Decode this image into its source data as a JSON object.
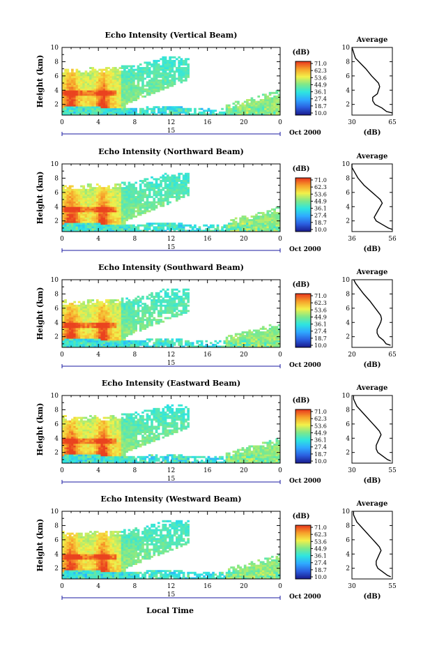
{
  "figure": {
    "xlabel": "Local Time",
    "cbar_unit": "(dB)",
    "cbar_ticks": [
      "71.0",
      "62.3",
      "53.6",
      "44.9",
      "36.1",
      "27.4",
      "18.7",
      "10.0"
    ],
    "avg_title": "Average",
    "avg_xlabel": "(dB)",
    "colors": {
      "scale": [
        "#1a1a8c",
        "#2b5fe0",
        "#2fa9ff",
        "#2ee6e0",
        "#7fe88a",
        "#f2f04a",
        "#f7a12a",
        "#e8341d"
      ],
      "line": "#000000"
    }
  },
  "chart_data": [
    {
      "type": "heatmap",
      "title": "Echo Intensity (Vertical Beam)",
      "ylabel": "Height (km)",
      "xlim": [
        0,
        24
      ],
      "ylim": [
        0.5,
        10
      ],
      "xticks": [
        "0",
        "4",
        "8",
        "12",
        "16",
        "20",
        "0"
      ],
      "yticks": [
        "2",
        "4",
        "6",
        "8",
        "10"
      ],
      "date_tick": "15",
      "date_label": "Oct 2000",
      "color_range_db": [
        10.0,
        71.0
      ],
      "average_profile": {
        "xlim": [
          30,
          65
        ],
        "xticks": [
          "30",
          "65"
        ],
        "yticks": [
          "2",
          "4",
          "6",
          "8",
          "10"
        ],
        "height_km": [
          0.8,
          1.0,
          1.5,
          2.0,
          2.5,
          3.0,
          3.5,
          4.0,
          4.5,
          5.0,
          5.5,
          6.0,
          7.0,
          8.0,
          8.5,
          9.0,
          9.5,
          10.0
        ],
        "db": [
          65,
          60,
          56,
          50,
          48,
          48,
          52,
          53,
          54,
          53,
          50,
          47,
          42,
          36,
          33,
          32,
          31,
          30
        ]
      }
    },
    {
      "type": "heatmap",
      "title": "Echo Intensity (Northward Beam)",
      "ylabel": "Height (km)",
      "xlim": [
        0,
        24
      ],
      "ylim": [
        0.5,
        10
      ],
      "xticks": [
        "0",
        "4",
        "8",
        "12",
        "16",
        "20",
        "0"
      ],
      "yticks": [
        "2",
        "4",
        "6",
        "8",
        "10"
      ],
      "date_tick": "15",
      "date_label": "Oct 2000",
      "color_range_db": [
        10.0,
        71.0
      ],
      "average_profile": {
        "xlim": [
          36,
          56
        ],
        "xticks": [
          "36",
          "56"
        ],
        "yticks": [
          "2",
          "4",
          "6",
          "8",
          "10"
        ],
        "height_km": [
          0.8,
          1.0,
          1.5,
          2.0,
          2.5,
          3.0,
          3.5,
          4.0,
          4.5,
          5.0,
          5.5,
          6.0,
          7.0,
          8.0,
          8.5,
          9.0,
          9.5,
          10.0
        ],
        "db": [
          56,
          54,
          51,
          48,
          47,
          48,
          49,
          50,
          51,
          50,
          48,
          46,
          42,
          39,
          38,
          37,
          36,
          36
        ]
      }
    },
    {
      "type": "heatmap",
      "title": "Echo Intensity (Southward Beam)",
      "ylabel": "Height (km)",
      "xlim": [
        0,
        24
      ],
      "ylim": [
        0.5,
        10
      ],
      "xticks": [
        "0",
        "4",
        "8",
        "12",
        "16",
        "20",
        "0"
      ],
      "yticks": [
        "2",
        "4",
        "6",
        "8",
        "10"
      ],
      "date_tick": "15",
      "date_label": "Oct 2000",
      "color_range_db": [
        10.0,
        71.0
      ],
      "average_profile": {
        "xlim": [
          20,
          65
        ],
        "xticks": [
          "20",
          "65"
        ],
        "yticks": [
          "2",
          "4",
          "6",
          "8",
          "10"
        ],
        "height_km": [
          0.8,
          1.0,
          1.5,
          2.0,
          2.5,
          3.0,
          3.5,
          4.0,
          4.5,
          5.0,
          5.5,
          6.0,
          7.0,
          8.0,
          8.5,
          9.0,
          9.5,
          10.0
        ],
        "db": [
          63,
          58,
          55,
          50,
          48,
          48,
          50,
          52,
          53,
          52,
          49,
          46,
          40,
          33,
          30,
          27,
          24,
          22
        ]
      }
    },
    {
      "type": "heatmap",
      "title": "Echo Intensity (Eastward Beam)",
      "ylabel": "Height (km)",
      "xlim": [
        0,
        24
      ],
      "ylim": [
        0.5,
        10
      ],
      "xticks": [
        "0",
        "4",
        "8",
        "12",
        "16",
        "20",
        "0"
      ],
      "yticks": [
        "2",
        "4",
        "6",
        "8",
        "10"
      ],
      "date_tick": "15",
      "date_label": "Oct 2000",
      "color_range_db": [
        10.0,
        71.0
      ],
      "average_profile": {
        "xlim": [
          30,
          55
        ],
        "xticks": [
          "30",
          "55"
        ],
        "yticks": [
          "2",
          "4",
          "6",
          "8",
          "10"
        ],
        "height_km": [
          0.8,
          1.0,
          1.5,
          2.0,
          2.5,
          3.0,
          3.5,
          4.0,
          4.5,
          5.0,
          5.5,
          6.0,
          7.0,
          8.0,
          8.5,
          9.0,
          9.5,
          10.0
        ],
        "db": [
          54,
          52,
          49,
          46,
          45,
          45,
          46,
          47,
          48,
          47,
          45,
          43,
          39,
          35,
          33,
          32,
          31,
          31
        ]
      }
    },
    {
      "type": "heatmap",
      "title": "Echo Intensity (Westward Beam)",
      "ylabel": "Height (km)",
      "xlim": [
        0,
        24
      ],
      "ylim": [
        0.5,
        10
      ],
      "xticks": [
        "0",
        "4",
        "8",
        "12",
        "16",
        "20",
        "0"
      ],
      "yticks": [
        "2",
        "4",
        "6",
        "8",
        "10"
      ],
      "date_tick": "15",
      "date_label": "Oct 2000",
      "color_range_db": [
        10.0,
        71.0
      ],
      "average_profile": {
        "xlim": [
          30,
          55
        ],
        "xticks": [
          "30",
          "55"
        ],
        "yticks": [
          "2",
          "4",
          "6",
          "8",
          "10"
        ],
        "height_km": [
          0.8,
          1.0,
          1.5,
          2.0,
          2.5,
          3.0,
          3.5,
          4.0,
          4.5,
          5.0,
          5.5,
          6.0,
          7.0,
          8.0,
          8.5,
          9.0,
          9.5,
          10.0
        ],
        "db": [
          54,
          52,
          49,
          46,
          45,
          45,
          46,
          47,
          48,
          47,
          45,
          43,
          39,
          35,
          33,
          32,
          31,
          31
        ]
      }
    }
  ]
}
